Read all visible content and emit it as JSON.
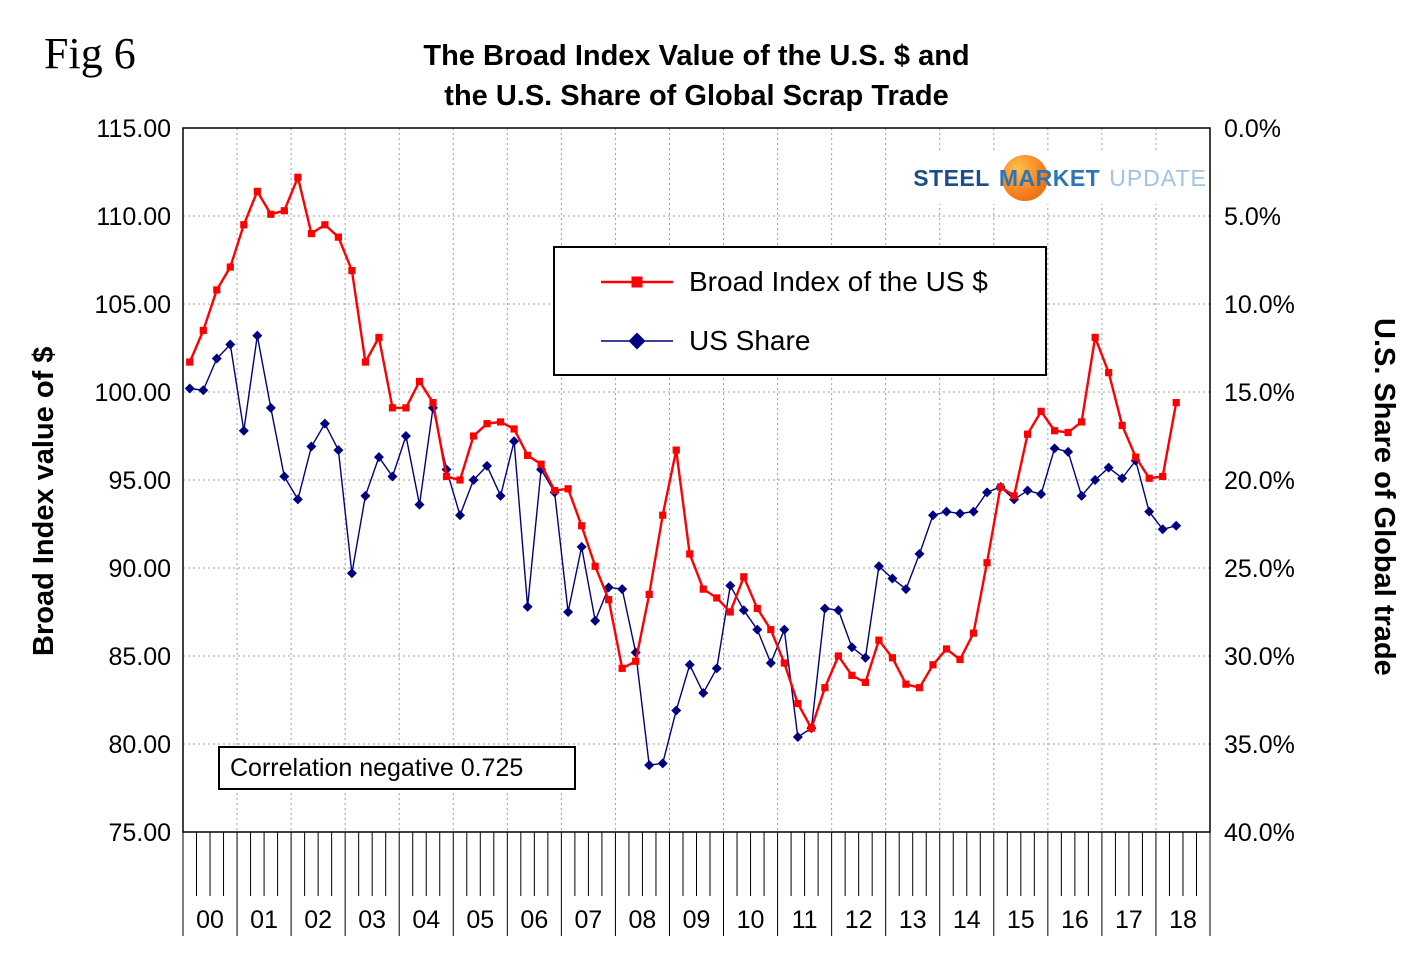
{
  "fig_label": "Fig 6",
  "logo": {
    "steel": "STEEL",
    "market": "MARKET",
    "update": "UPDATE",
    "colors": {
      "steel": "#1A4E8A",
      "market": "#2E75B6",
      "update": "#9DC3E6",
      "orange": "#F58220",
      "orange_light": "#FDC04D",
      "orange_deep": "#E05E00"
    }
  },
  "chart_data": {
    "type": "line",
    "title": "The Broad Index Value of the U.S. $ and the U.S. Share of Global Scrap Trade",
    "title_lines": [
      "The Broad Index Value of the U.S. $ and",
      "the U.S. Share of Global Scrap Trade"
    ],
    "annotation": "Correlation negative 0.725",
    "grid": "dotted",
    "grid_color": "#9C9C9C",
    "legend_position": "inside-top-center",
    "x_years": [
      "00",
      "01",
      "02",
      "03",
      "04",
      "05",
      "06",
      "07",
      "08",
      "09",
      "10",
      "11",
      "12",
      "13",
      "14",
      "15",
      "16",
      "17",
      "18"
    ],
    "points_per_year": 4,
    "left_axis": {
      "label": "Broad Index value of $",
      "min": 75,
      "max": 115,
      "step": 5,
      "tick_labels": [
        "115.00",
        "110.00",
        "105.00",
        "100.00",
        "95.00",
        "90.00",
        "85.00",
        "80.00",
        "75.00"
      ]
    },
    "right_axis": {
      "label": "U.S. Share of Global trade",
      "min": 0,
      "max": 40,
      "step": 5,
      "inverted": true,
      "tick_labels": [
        "0.0%",
        "5.0%",
        "10.0%",
        "15.0%",
        "20.0%",
        "25.0%",
        "30.0%",
        "35.0%",
        "40.0%"
      ]
    },
    "series": [
      {
        "id": "broad-index",
        "name": "Broad Index of the US $",
        "axis": "left",
        "color": "#FF0000",
        "marker": "square",
        "values": [
          101.7,
          103.5,
          105.8,
          107.1,
          109.5,
          111.4,
          110.1,
          110.3,
          112.2,
          109.0,
          109.5,
          108.8,
          106.9,
          101.7,
          103.1,
          99.1,
          99.1,
          100.6,
          99.4,
          95.2,
          95.0,
          97.5,
          98.2,
          98.3,
          97.9,
          96.4,
          95.9,
          94.4,
          94.5,
          92.4,
          90.1,
          88.2,
          84.3,
          84.7,
          88.5,
          93.0,
          96.7,
          90.8,
          88.8,
          88.3,
          87.5,
          89.5,
          87.7,
          86.5,
          84.6,
          82.3,
          80.9,
          83.2,
          85.0,
          83.9,
          83.5,
          85.9,
          84.9,
          83.4,
          83.2,
          84.5,
          85.4,
          84.8,
          86.3,
          90.3,
          94.6,
          94.1,
          97.6,
          98.9,
          97.8,
          97.7,
          98.3,
          103.1,
          101.1,
          98.1,
          96.3,
          95.1,
          95.2,
          99.4
        ]
      },
      {
        "id": "us-share",
        "name": "US  Share",
        "axis": "right",
        "color": "#000080",
        "marker": "diamond",
        "values": [
          14.8,
          14.9,
          13.1,
          12.3,
          17.2,
          11.8,
          15.9,
          19.8,
          21.1,
          18.1,
          16.8,
          18.3,
          25.3,
          20.9,
          18.7,
          19.8,
          17.5,
          21.4,
          15.9,
          19.4,
          22.0,
          20.0,
          19.2,
          20.9,
          17.8,
          27.2,
          19.4,
          20.7,
          27.5,
          23.8,
          28.0,
          26.1,
          26.2,
          29.8,
          36.2,
          36.1,
          33.1,
          30.5,
          32.1,
          30.7,
          26.0,
          27.4,
          28.5,
          30.4,
          28.5,
          34.6,
          34.1,
          27.3,
          27.4,
          29.5,
          30.1,
          24.9,
          25.6,
          26.2,
          24.2,
          22.0,
          21.8,
          21.9,
          21.8,
          20.7,
          20.4,
          21.1,
          20.6,
          20.8,
          18.2,
          18.4,
          20.9,
          20.0,
          19.3,
          19.9,
          18.9,
          21.8,
          22.8,
          22.6
        ]
      }
    ]
  }
}
